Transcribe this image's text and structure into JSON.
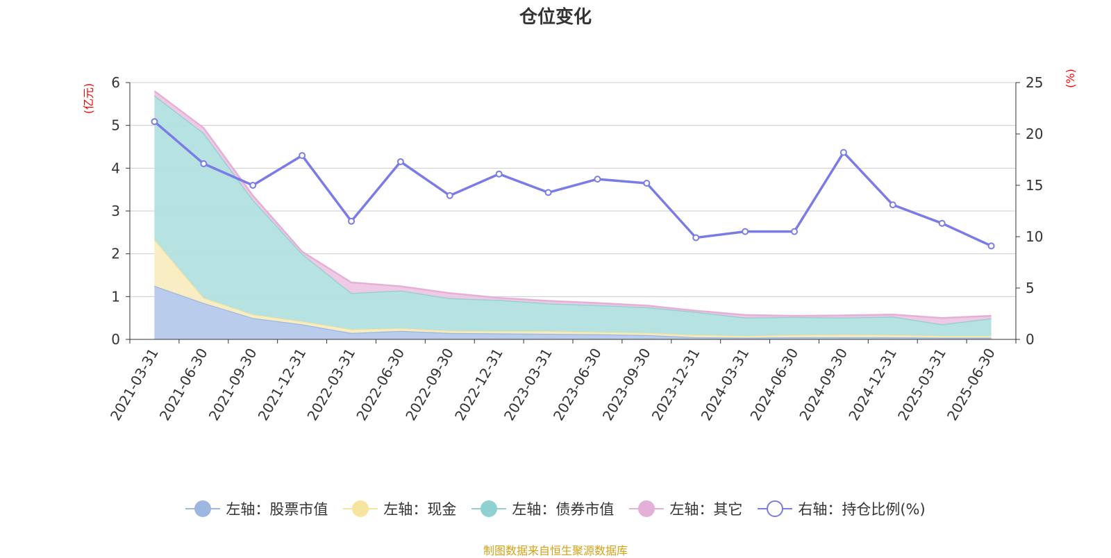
{
  "chart_data": {
    "type": "area",
    "title": "仓位变化",
    "source_note": "制图数据来自恒生聚源数据库",
    "categories": [
      "2021-03-31",
      "2021-06-30",
      "2021-09-30",
      "2021-12-31",
      "2022-03-31",
      "2022-06-30",
      "2022-09-30",
      "2022-12-31",
      "2023-03-31",
      "2023-06-30",
      "2023-09-30",
      "2023-12-31",
      "2024-03-31",
      "2024-06-30",
      "2024-09-30",
      "2024-12-31",
      "2025-03-31",
      "2025-06-30"
    ],
    "left_axis": {
      "unit": "(亿元)",
      "min": 0,
      "max": 6,
      "ticks": [
        0,
        1,
        2,
        3,
        4,
        5,
        6
      ]
    },
    "right_axis": {
      "unit": "(%)",
      "min": 0,
      "max": 25,
      "ticks": [
        0,
        5,
        10,
        15,
        20,
        25
      ]
    },
    "stacked_series": [
      {
        "name": "左轴：股票市值",
        "color": "#9db7e0",
        "fill": "#b5c9eb",
        "values": [
          1.25,
          0.85,
          0.5,
          0.35,
          0.15,
          0.2,
          0.15,
          0.14,
          0.13,
          0.12,
          0.1,
          0.05,
          0.04,
          0.05,
          0.05,
          0.05,
          0.04,
          0.04
        ]
      },
      {
        "name": "左轴：现金",
        "color": "#f7e4a0",
        "fill": "#f9edc0",
        "values": [
          1.08,
          0.12,
          0.08,
          0.07,
          0.08,
          0.06,
          0.05,
          0.05,
          0.06,
          0.05,
          0.05,
          0.05,
          0.04,
          0.05,
          0.06,
          0.05,
          0.04,
          0.04
        ]
      },
      {
        "name": "左轴：债券市值",
        "color": "#8fd0d0",
        "fill": "#b3e0e0",
        "values": [
          3.37,
          3.85,
          2.68,
          1.58,
          0.85,
          0.88,
          0.76,
          0.73,
          0.65,
          0.63,
          0.6,
          0.54,
          0.43,
          0.42,
          0.4,
          0.43,
          0.27,
          0.41
        ]
      },
      {
        "name": "左轴：其它",
        "color": "#e4b0d8",
        "fill": "#eec7e4",
        "values": [
          0.1,
          0.12,
          0.1,
          0.05,
          0.25,
          0.1,
          0.12,
          0.05,
          0.06,
          0.05,
          0.04,
          0.03,
          0.06,
          0.03,
          0.05,
          0.05,
          0.15,
          0.06
        ]
      }
    ],
    "line_series": {
      "name": "右轴：持仓比例(%)",
      "color": "#7b7be8",
      "values": [
        21.2,
        17.1,
        15.0,
        17.9,
        11.5,
        17.3,
        14.0,
        16.1,
        14.3,
        15.6,
        15.2,
        9.9,
        10.5,
        10.5,
        18.2,
        13.1,
        11.3,
        9.1
      ]
    },
    "legend_position": "bottom",
    "grid": true
  }
}
